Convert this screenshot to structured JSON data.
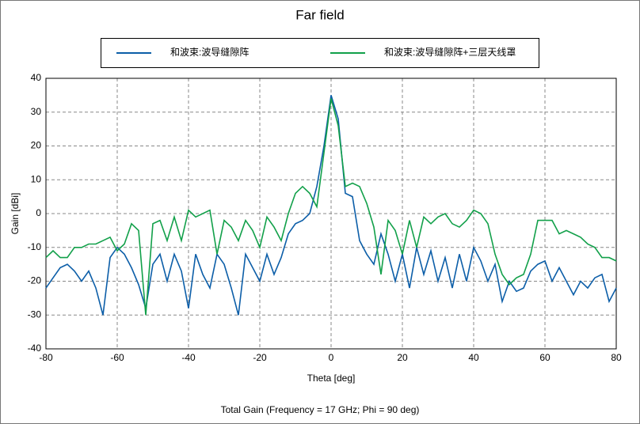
{
  "chart_data": {
    "type": "line",
    "title": "Far field",
    "xlabel": "Theta [deg]",
    "ylabel": "Gain [dBi]",
    "caption": "Total Gain (Frequency = 17 GHz; Phi = 90 deg)",
    "x": [
      -80,
      -78,
      -76,
      -74,
      -72,
      -70,
      -68,
      -66,
      -64,
      -62,
      -60,
      -58,
      -56,
      -54,
      -52,
      -50,
      -48,
      -46,
      -44,
      -42,
      -40,
      -38,
      -36,
      -34,
      -32,
      -30,
      -28,
      -26,
      -24,
      -22,
      -20,
      -18,
      -16,
      -14,
      -12,
      -10,
      -8,
      -6,
      -4,
      -2,
      0,
      2,
      4,
      6,
      8,
      10,
      12,
      14,
      16,
      18,
      20,
      22,
      24,
      26,
      28,
      30,
      32,
      34,
      36,
      38,
      40,
      42,
      44,
      46,
      48,
      50,
      52,
      54,
      56,
      58,
      60,
      62,
      64,
      66,
      68,
      70,
      72,
      74,
      76,
      78,
      80
    ],
    "series": [
      {
        "name": "和波束:波导缝隙阵",
        "color": "#0c5ea8",
        "values": [
          -22,
          -19,
          -16,
          -15,
          -17,
          -20,
          -17,
          -22,
          -30,
          -13,
          -10,
          -12,
          -16,
          -21,
          -28,
          -15,
          -12,
          -20,
          -12,
          -17,
          -28,
          -12,
          -18,
          -22,
          -12,
          -15,
          -22,
          -30,
          -12,
          -16,
          -20,
          -12,
          -18,
          -13,
          -6,
          -3,
          -2,
          0,
          8,
          20,
          35,
          28,
          6,
          5,
          -8,
          -12,
          -15,
          -6,
          -12,
          -20,
          -12,
          -22,
          -10,
          -18,
          -11,
          -20,
          -13,
          -22,
          -12,
          -20,
          -10,
          -14,
          -20,
          -15,
          -26,
          -20,
          -23,
          -22,
          -17,
          -15,
          -14,
          -20,
          -16,
          -20,
          -24,
          -20,
          -22,
          -19,
          -18,
          -26,
          -22
        ]
      },
      {
        "name": "和波束:波导缝隙阵+三层天线罩",
        "color": "#12a04a",
        "values": [
          -13,
          -11,
          -13,
          -13,
          -10,
          -10,
          -9,
          -9,
          -8,
          -7,
          -11,
          -9,
          -3,
          -5,
          -30,
          -3,
          -2,
          -8,
          -1,
          -8,
          1,
          -1,
          0,
          1,
          -12,
          -2,
          -4,
          -8,
          -2,
          -5,
          -10,
          -1,
          -4,
          -8,
          0,
          6,
          8,
          6,
          2,
          18,
          34,
          26,
          8,
          9,
          8,
          3,
          -4,
          -18,
          -2,
          -5,
          -12,
          -2,
          -10,
          -1,
          -3,
          -1,
          0,
          -3,
          -4,
          -2,
          1,
          0,
          -3,
          -12,
          -18,
          -21,
          -19,
          -18,
          -12,
          -2,
          -2,
          -2,
          -6,
          -5,
          -6,
          -7,
          -9,
          -10,
          -13,
          -13,
          -14
        ]
      }
    ],
    "xlim": [
      -80,
      80
    ],
    "xticks": [
      -80,
      -60,
      -40,
      -20,
      0,
      20,
      40,
      60,
      80
    ],
    "ylim": [
      -40,
      40
    ],
    "yticks": [
      -40,
      -30,
      -20,
      -10,
      0,
      10,
      20,
      30,
      40
    ],
    "grid": true
  }
}
